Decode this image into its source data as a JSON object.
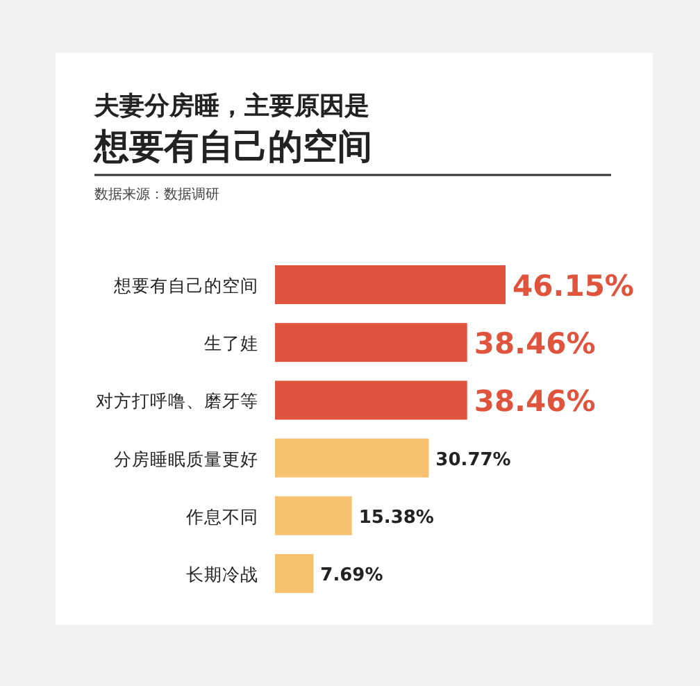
{
  "chart_data": {
    "type": "bar",
    "orientation": "horizontal",
    "title": "夫妻分房睡，主要原因是",
    "subtitle": "想要有自己的空间",
    "annotations": [
      "数据来源：数据调研"
    ],
    "categories": [
      "想要有自己的空间",
      "生了娃",
      "对方打呼噜、磨牙等",
      "分房睡眠质量更好",
      "作息不同",
      "长期冷战"
    ],
    "values": [
      46.15,
      38.46,
      38.46,
      30.77,
      15.38,
      7.69
    ],
    "colors": [
      "#e0533d",
      "#e0533d",
      "#e0533d",
      "#f6c26f",
      "#f6c26f",
      "#f6c26f"
    ],
    "value_labels": [
      "46.15%",
      "38.46%",
      "38.46%",
      "30.77%",
      "15.38%",
      "7.69%"
    ]
  }
}
